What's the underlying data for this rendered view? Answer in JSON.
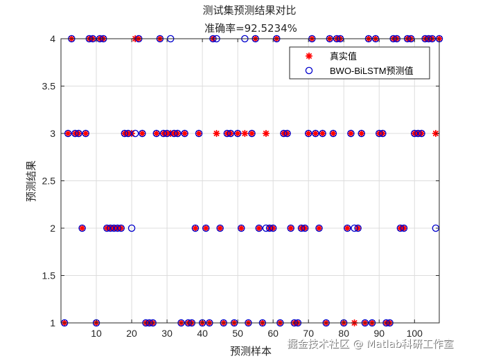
{
  "chart_data": {
    "type": "scatter",
    "title": "测试集预测结果对比",
    "subtitle": "准确率=92.5234%",
    "xlabel": "预测样本",
    "ylabel": "预测结果",
    "xlim": [
      0,
      107
    ],
    "ylim": [
      1,
      4
    ],
    "x_ticks": [
      10,
      20,
      30,
      40,
      50,
      60,
      70,
      80,
      90,
      100
    ],
    "y_ticks": [
      1,
      1.5,
      2,
      2.5,
      3,
      3.5,
      4
    ],
    "grid": true,
    "legend_position": "top-right",
    "series": [
      {
        "name": "真实值",
        "marker": "asterisk",
        "color": "#ff0000",
        "points": [
          [
            1,
            1
          ],
          [
            2,
            3
          ],
          [
            3,
            4
          ],
          [
            4,
            3
          ],
          [
            5,
            3
          ],
          [
            6,
            2
          ],
          [
            7,
            3
          ],
          [
            8,
            4
          ],
          [
            9,
            4
          ],
          [
            10,
            1
          ],
          [
            11,
            4
          ],
          [
            12,
            4
          ],
          [
            13,
            2
          ],
          [
            14,
            2
          ],
          [
            15,
            2
          ],
          [
            16,
            2
          ],
          [
            17,
            2
          ],
          [
            18,
            3
          ],
          [
            19,
            3
          ],
          [
            20,
            3
          ],
          [
            21,
            4
          ],
          [
            22,
            4
          ],
          [
            23,
            3
          ],
          [
            24,
            1
          ],
          [
            25,
            1
          ],
          [
            26,
            1
          ],
          [
            27,
            3
          ],
          [
            28,
            4
          ],
          [
            29,
            3
          ],
          [
            30,
            3
          ],
          [
            31,
            3
          ],
          [
            32,
            3
          ],
          [
            33,
            3
          ],
          [
            34,
            1
          ],
          [
            35,
            3
          ],
          [
            36,
            1
          ],
          [
            37,
            1
          ],
          [
            38,
            2
          ],
          [
            39,
            3
          ],
          [
            40,
            1
          ],
          [
            41,
            2
          ],
          [
            42,
            1
          ],
          [
            43,
            4
          ],
          [
            44,
            3
          ],
          [
            45,
            2
          ],
          [
            46,
            1
          ],
          [
            47,
            3
          ],
          [
            48,
            3
          ],
          [
            49,
            1
          ],
          [
            50,
            3
          ],
          [
            51,
            2
          ],
          [
            52,
            3
          ],
          [
            53,
            1
          ],
          [
            54,
            3
          ],
          [
            55,
            4
          ],
          [
            56,
            2
          ],
          [
            57,
            1
          ],
          [
            58,
            3
          ],
          [
            59,
            2
          ],
          [
            60,
            2
          ],
          [
            61,
            4
          ],
          [
            62,
            1
          ],
          [
            63,
            3
          ],
          [
            64,
            3
          ],
          [
            65,
            2
          ],
          [
            66,
            1
          ],
          [
            67,
            1
          ],
          [
            68,
            2
          ],
          [
            69,
            2
          ],
          [
            70,
            3
          ],
          [
            71,
            4
          ],
          [
            72,
            3
          ],
          [
            73,
            2
          ],
          [
            74,
            3
          ],
          [
            75,
            1
          ],
          [
            76,
            4
          ],
          [
            77,
            3
          ],
          [
            78,
            4
          ],
          [
            79,
            4
          ],
          [
            80,
            1
          ],
          [
            81,
            2
          ],
          [
            82,
            3
          ],
          [
            83,
            1
          ],
          [
            84,
            2
          ],
          [
            85,
            3
          ],
          [
            86,
            1
          ],
          [
            87,
            4
          ],
          [
            88,
            1
          ],
          [
            89,
            4
          ],
          [
            90,
            3
          ],
          [
            91,
            3
          ],
          [
            92,
            1
          ],
          [
            93,
            1
          ],
          [
            94,
            4
          ],
          [
            95,
            4
          ],
          [
            96,
            2
          ],
          [
            97,
            2
          ],
          [
            98,
            4
          ],
          [
            99,
            4
          ],
          [
            100,
            3
          ],
          [
            101,
            3
          ],
          [
            102,
            3
          ],
          [
            103,
            4
          ],
          [
            104,
            4
          ],
          [
            105,
            4
          ],
          [
            106,
            3
          ],
          [
            107,
            4
          ]
        ]
      },
      {
        "name": "BWO-BiLSTM预测值",
        "marker": "circle",
        "color": "#0000cc",
        "points": [
          [
            1,
            1
          ],
          [
            2,
            3
          ],
          [
            3,
            4
          ],
          [
            4,
            3
          ],
          [
            5,
            3
          ],
          [
            6,
            2
          ],
          [
            7,
            3
          ],
          [
            8,
            4
          ],
          [
            9,
            4
          ],
          [
            10,
            1
          ],
          [
            11,
            4
          ],
          [
            12,
            4
          ],
          [
            13,
            2
          ],
          [
            14,
            2
          ],
          [
            15,
            2
          ],
          [
            16,
            2
          ],
          [
            17,
            2
          ],
          [
            18,
            3
          ],
          [
            19,
            3
          ],
          [
            20,
            2
          ],
          [
            21,
            3
          ],
          [
            22,
            4
          ],
          [
            23,
            3
          ],
          [
            24,
            1
          ],
          [
            25,
            1
          ],
          [
            26,
            1
          ],
          [
            27,
            3
          ],
          [
            28,
            4
          ],
          [
            29,
            3
          ],
          [
            30,
            3
          ],
          [
            31,
            4
          ],
          [
            32,
            3
          ],
          [
            33,
            3
          ],
          [
            34,
            1
          ],
          [
            35,
            3
          ],
          [
            36,
            1
          ],
          [
            37,
            1
          ],
          [
            38,
            2
          ],
          [
            39,
            3
          ],
          [
            40,
            1
          ],
          [
            41,
            2
          ],
          [
            42,
            1
          ],
          [
            43,
            4
          ],
          [
            44,
            4
          ],
          [
            45,
            2
          ],
          [
            46,
            1
          ],
          [
            47,
            3
          ],
          [
            48,
            3
          ],
          [
            49,
            1
          ],
          [
            50,
            3
          ],
          [
            51,
            2
          ],
          [
            52,
            4
          ],
          [
            53,
            1
          ],
          [
            54,
            3
          ],
          [
            55,
            4
          ],
          [
            56,
            2
          ],
          [
            57,
            1
          ],
          [
            58,
            2
          ],
          [
            59,
            2
          ],
          [
            60,
            2
          ],
          [
            61,
            4
          ],
          [
            62,
            1
          ],
          [
            63,
            3
          ],
          [
            64,
            3
          ],
          [
            65,
            2
          ],
          [
            66,
            1
          ],
          [
            67,
            1
          ],
          [
            68,
            2
          ],
          [
            69,
            2
          ],
          [
            70,
            3
          ],
          [
            71,
            4
          ],
          [
            72,
            3
          ],
          [
            73,
            2
          ],
          [
            74,
            3
          ],
          [
            75,
            1
          ],
          [
            76,
            4
          ],
          [
            77,
            3
          ],
          [
            78,
            4
          ],
          [
            79,
            4
          ],
          [
            80,
            1
          ],
          [
            81,
            2
          ],
          [
            82,
            3
          ],
          [
            83,
            2
          ],
          [
            84,
            2
          ],
          [
            85,
            3
          ],
          [
            86,
            1
          ],
          [
            87,
            4
          ],
          [
            88,
            1
          ],
          [
            89,
            4
          ],
          [
            90,
            3
          ],
          [
            91,
            3
          ],
          [
            92,
            1
          ],
          [
            93,
            1
          ],
          [
            94,
            4
          ],
          [
            95,
            4
          ],
          [
            96,
            2
          ],
          [
            97,
            2
          ],
          [
            98,
            4
          ],
          [
            99,
            4
          ],
          [
            100,
            3
          ],
          [
            101,
            3
          ],
          [
            102,
            3
          ],
          [
            103,
            4
          ],
          [
            104,
            4
          ],
          [
            105,
            4
          ],
          [
            106,
            2
          ],
          [
            107,
            4
          ]
        ]
      }
    ]
  },
  "watermark": "掘金技术社区 @ Matlab科研工作室"
}
